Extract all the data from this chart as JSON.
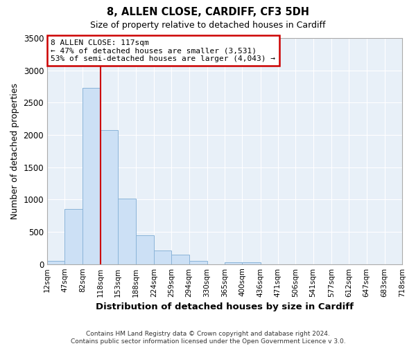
{
  "title": "8, ALLEN CLOSE, CARDIFF, CF3 5DH",
  "subtitle": "Size of property relative to detached houses in Cardiff",
  "xlabel": "Distribution of detached houses by size in Cardiff",
  "ylabel": "Number of detached properties",
  "bar_color": "#cce0f5",
  "bar_edge_color": "#8ab4d8",
  "background_color": "#e8f0f8",
  "grid_color": "#ffffff",
  "vline_x": 118,
  "vline_color": "#cc0000",
  "annotation_text": "8 ALLEN CLOSE: 117sqm\n← 47% of detached houses are smaller (3,531)\n53% of semi-detached houses are larger (4,043) →",
  "annotation_box_color": "#ffffff",
  "annotation_box_edge_color": "#cc0000",
  "bin_edges": [
    12,
    47,
    82,
    118,
    153,
    188,
    224,
    259,
    294,
    330,
    365,
    400,
    436,
    471,
    506,
    541,
    577,
    612,
    647,
    683,
    718
  ],
  "bin_values": [
    50,
    850,
    2730,
    2070,
    1010,
    450,
    210,
    145,
    50,
    0,
    25,
    25,
    0,
    0,
    0,
    0,
    0,
    0,
    0,
    0
  ],
  "ylim": [
    0,
    3500
  ],
  "yticks": [
    0,
    500,
    1000,
    1500,
    2000,
    2500,
    3000,
    3500
  ],
  "footer_text": "Contains HM Land Registry data © Crown copyright and database right 2024.\nContains public sector information licensed under the Open Government Licence v 3.0.",
  "figsize": [
    6.0,
    5.0
  ],
  "dpi": 100
}
